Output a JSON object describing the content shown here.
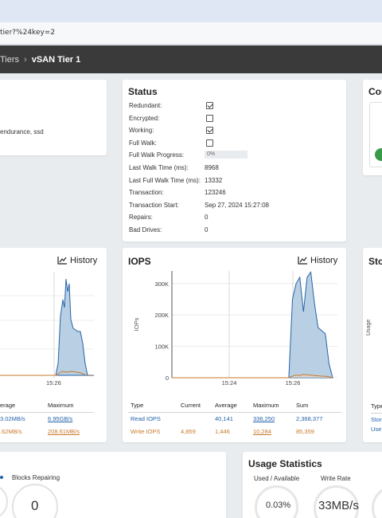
{
  "browser": {
    "url": "tier?%24key=2"
  },
  "breadcrumb": {
    "parent": "Tiers",
    "separator": "›",
    "current": "vSAN Tier 1"
  },
  "info_card": {
    "tags": "endurance, ssd"
  },
  "status": {
    "title": "Status",
    "rows": [
      {
        "label": "Redundant:",
        "type": "check",
        "checked": true
      },
      {
        "label": "Encrypted:",
        "type": "check",
        "checked": false
      },
      {
        "label": "Working:",
        "type": "check",
        "checked": true
      },
      {
        "label": "Full Walk:",
        "type": "check",
        "checked": false
      },
      {
        "label": "Full Walk Progress:",
        "type": "progress",
        "value": "0%"
      },
      {
        "label": "Last Walk Time (ms):",
        "type": "text",
        "value": "8968"
      },
      {
        "label": "Last Full Walk Time (ms):",
        "type": "text",
        "value": "13332"
      },
      {
        "label": "Transaction:",
        "type": "text",
        "value": "123246"
      },
      {
        "label": "Transaction Start:",
        "type": "text",
        "value": "Sep 27, 2024 15:27:08"
      },
      {
        "label": "Repairs:",
        "type": "text",
        "value": "0"
      },
      {
        "label": "Bad Drives:",
        "type": "text",
        "value": "0"
      }
    ]
  },
  "counts_card": {
    "title_partial": "Cou"
  },
  "left_chart": {
    "history_label": "History",
    "x_tick": "15:26",
    "table": {
      "headers": [
        "erage",
        "Maximum"
      ],
      "rows": [
        {
          "values": [
            "3.02MB/s",
            "6.95GB/s"
          ],
          "color": "#2563a8"
        },
        {
          "values": [
            ".62MB/s",
            "208.61MB/s"
          ],
          "color": "#c8782a"
        }
      ]
    }
  },
  "iops": {
    "title": "IOPS",
    "history_label": "History",
    "ylabel": "IOPs",
    "x_ticks": [
      "15:24",
      "15:26"
    ],
    "table": {
      "headers": [
        "Type",
        "Current",
        "Average",
        "Maximum",
        "Sum"
      ],
      "rows": [
        {
          "type": "Read IOPS",
          "current": "",
          "average": "40,141",
          "maximum": "336,250",
          "sum": "2,368,377",
          "color": "#2563a8"
        },
        {
          "type": "Write IOPS",
          "current": "4,859",
          "average": "1,446",
          "maximum": "10,284",
          "sum": "85,359",
          "color": "#c8782a"
        }
      ]
    }
  },
  "storage_card": {
    "title_partial": "Stor",
    "ylabel": "Usage",
    "table": {
      "header": "Type",
      "rows": [
        "Stor",
        "Use"
      ]
    }
  },
  "blocks_card": {
    "label": "Blocks Repairing",
    "value": "0"
  },
  "usage_stats": {
    "title": "Usage Statistics",
    "labels": [
      "Used / Available",
      "Write Rate"
    ],
    "values": [
      "0.03%",
      "33MB/s"
    ]
  },
  "chart_data": {
    "type": "area",
    "title": "IOPS",
    "ylabel": "IOPs",
    "y_ticks": [
      "0",
      "100K",
      "200K",
      "300K"
    ],
    "ylim": [
      0,
      340000
    ],
    "x_ticks": [
      "15:24",
      "15:26"
    ],
    "grid": true,
    "series": [
      {
        "name": "Read IOPS",
        "color": "#2563a8",
        "values": [
          0,
          0,
          0,
          0,
          0,
          0,
          0,
          0,
          0,
          0,
          0,
          0,
          0,
          0,
          0,
          0,
          0,
          0,
          0,
          0,
          0,
          0,
          0,
          0,
          0,
          0,
          0,
          0,
          0,
          0,
          0,
          0,
          0,
          250000,
          300000,
          320000,
          210000,
          320000,
          336250,
          240000,
          160000,
          150000,
          140000,
          45000,
          0
        ]
      },
      {
        "name": "Write IOPS",
        "color": "#c8782a",
        "values": [
          0,
          0,
          0,
          0,
          0,
          0,
          0,
          0,
          0,
          0,
          0,
          0,
          0,
          0,
          0,
          0,
          0,
          0,
          0,
          0,
          0,
          0,
          0,
          0,
          0,
          0,
          0,
          0,
          0,
          0,
          0,
          0,
          0,
          5000,
          8000,
          7000,
          10284,
          9000,
          8000,
          7000,
          6000,
          5000,
          4859,
          3000,
          0
        ]
      }
    ]
  }
}
